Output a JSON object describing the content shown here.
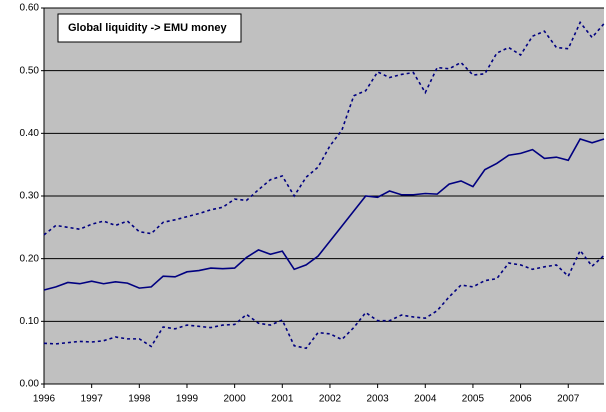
{
  "chart_data": {
    "type": "line",
    "title": "Global liquidity -> EMU money",
    "x": [
      1996,
      1996.25,
      1996.5,
      1996.75,
      1997,
      1997.25,
      1997.5,
      1997.75,
      1998,
      1998.25,
      1998.5,
      1998.75,
      1999,
      1999.25,
      1999.5,
      1999.75,
      2000,
      2000.25,
      2000.5,
      2000.75,
      2001,
      2001.25,
      2001.5,
      2001.75,
      2002,
      2002.25,
      2002.5,
      2002.75,
      2003,
      2003.25,
      2003.5,
      2003.75,
      2004,
      2004.25,
      2004.5,
      2004.75,
      2005,
      2005.25,
      2005.5,
      2005.75,
      2006,
      2006.25,
      2006.5,
      2006.75,
      2007,
      2007.25,
      2007.5,
      2007.75
    ],
    "series": [
      {
        "color": "#000080",
        "style": "solid",
        "values": [
          0.15,
          0.155,
          0.162,
          0.16,
          0.164,
          0.16,
          0.163,
          0.161,
          0.153,
          0.155,
          0.172,
          0.171,
          0.179,
          0.181,
          0.185,
          0.184,
          0.185,
          0.202,
          0.214,
          0.207,
          0.212,
          0.183,
          0.19,
          0.204,
          0.228,
          0.252,
          0.276,
          0.3,
          0.298,
          0.308,
          0.302,
          0.302,
          0.304,
          0.303,
          0.319,
          0.324,
          0.315,
          0.342,
          0.352,
          0.365,
          0.368,
          0.374,
          0.36,
          0.362,
          0.357,
          0.391,
          0.385,
          0.391
        ]
      },
      {
        "color": "#000080",
        "style": "dashed",
        "values": [
          0.238,
          0.253,
          0.25,
          0.247,
          0.255,
          0.26,
          0.253,
          0.26,
          0.243,
          0.24,
          0.258,
          0.262,
          0.267,
          0.272,
          0.278,
          0.282,
          0.295,
          0.293,
          0.31,
          0.326,
          0.332,
          0.3,
          0.33,
          0.346,
          0.38,
          0.405,
          0.46,
          0.468,
          0.498,
          0.489,
          0.494,
          0.497,
          0.465,
          0.505,
          0.503,
          0.513,
          0.493,
          0.495,
          0.528,
          0.537,
          0.525,
          0.555,
          0.563,
          0.537,
          0.535,
          0.577,
          0.553,
          0.575
        ]
      },
      {
        "color": "#000080",
        "style": "dashed",
        "values": [
          0.065,
          0.064,
          0.066,
          0.068,
          0.067,
          0.069,
          0.075,
          0.072,
          0.072,
          0.06,
          0.091,
          0.088,
          0.094,
          0.092,
          0.09,
          0.094,
          0.095,
          0.111,
          0.097,
          0.094,
          0.102,
          0.061,
          0.057,
          0.082,
          0.08,
          0.071,
          0.09,
          0.114,
          0.101,
          0.101,
          0.11,
          0.107,
          0.105,
          0.117,
          0.139,
          0.158,
          0.155,
          0.165,
          0.168,
          0.193,
          0.19,
          0.183,
          0.187,
          0.19,
          0.172,
          0.213,
          0.188,
          0.205
        ]
      }
    ],
    "xlim": [
      1996,
      2007.75
    ],
    "xticks": [
      1996,
      1997,
      1998,
      1999,
      2000,
      2001,
      2002,
      2003,
      2004,
      2005,
      2006,
      2007
    ],
    "ylim": [
      0,
      0.6
    ],
    "yticks": [
      {
        "value": 0,
        "label": "0.00"
      },
      {
        "value": 0.1,
        "label": "0.10"
      },
      {
        "value": 0.2,
        "label": "0.20"
      },
      {
        "value": 0.3,
        "label": "0.30"
      },
      {
        "value": 0.4,
        "label": "0.40"
      },
      {
        "value": 0.5,
        "label": "0.50"
      },
      {
        "value": 0.6,
        "label": "0.60"
      }
    ],
    "grid": true,
    "background": "#c0c0c0"
  }
}
